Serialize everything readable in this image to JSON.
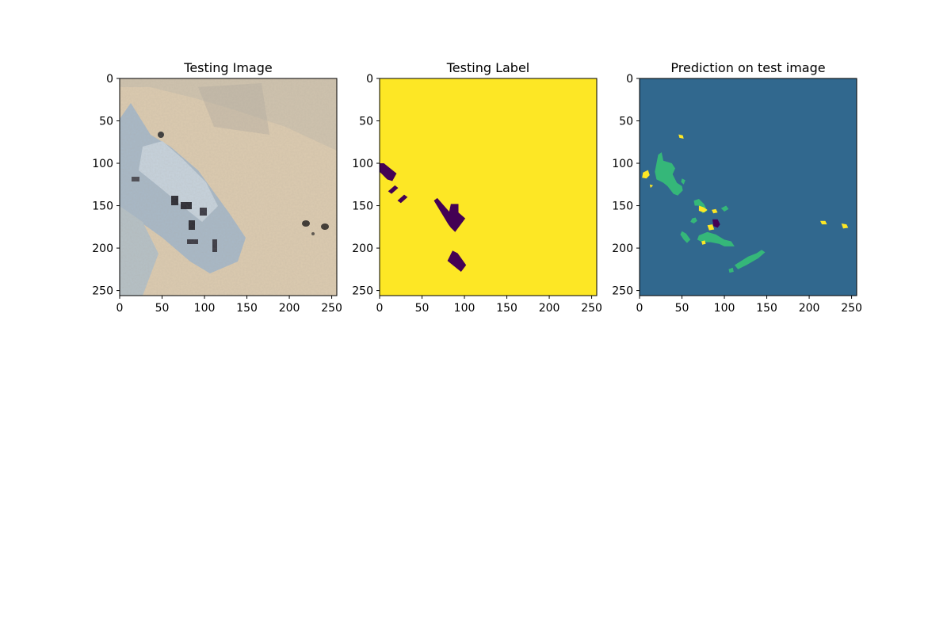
{
  "figure": {
    "panels": [
      {
        "title": "Testing Image",
        "kind": "aerial-photo",
        "xticks": [
          "0",
          "50",
          "100",
          "150",
          "200",
          "250"
        ],
        "yticks": [
          "0",
          "50",
          "100",
          "150",
          "200",
          "250"
        ],
        "colors": {
          "sand": "#dccbb0",
          "rubble": "#a9b9c7",
          "shadow": "#2b2b33"
        }
      },
      {
        "title": "Testing Label",
        "kind": "label-mask",
        "xticks": [
          "0",
          "50",
          "100",
          "150",
          "200",
          "250"
        ],
        "yticks": [
          "0",
          "50",
          "100",
          "150",
          "200",
          "250"
        ],
        "colors": {
          "background": "#fde725",
          "class_0": "#440154"
        }
      },
      {
        "title": "Prediction on test image",
        "kind": "prediction-mask",
        "xticks": [
          "0",
          "50",
          "100",
          "150",
          "200",
          "250"
        ],
        "yticks": [
          "0",
          "50",
          "100",
          "150",
          "200",
          "250"
        ],
        "colors": {
          "background": "#31688e",
          "class_a": "#35b779",
          "class_b": "#fde725",
          "class_c": "#440154"
        }
      }
    ]
  },
  "chart_data": [
    {
      "type": "heatmap",
      "title": "Testing Image",
      "xlabel": "",
      "ylabel": "",
      "xlim": [
        0,
        256
      ],
      "ylim": [
        256,
        0
      ],
      "ticks": [
        0,
        50,
        100,
        150,
        200,
        250
      ],
      "content": "RGB satellite image: sandy terrain with bluish-white building rubble block on the left diagonal"
    },
    {
      "type": "heatmap",
      "title": "Testing Label",
      "xlabel": "",
      "ylabel": "",
      "xlim": [
        0,
        256
      ],
      "ylim": [
        256,
        0
      ],
      "ticks": [
        0,
        50,
        100,
        150,
        200,
        250
      ],
      "classes": [
        {
          "color": "#fde725",
          "role": "background"
        },
        {
          "color": "#440154",
          "role": "labelled regions"
        }
      ],
      "regions": [
        {
          "color": "#440154",
          "points": [
            [
              0,
              100
            ],
            [
              5,
              100
            ],
            [
              20,
              112
            ],
            [
              15,
              121
            ],
            [
              9,
              119
            ],
            [
              0,
              110
            ]
          ]
        },
        {
          "color": "#440154",
          "points": [
            [
              10,
              133
            ],
            [
              18,
              126
            ],
            [
              22,
              129
            ],
            [
              14,
              136
            ]
          ]
        },
        {
          "color": "#440154",
          "points": [
            [
              21,
              144
            ],
            [
              29,
              137
            ],
            [
              33,
              140
            ],
            [
              25,
              147
            ]
          ]
        },
        {
          "color": "#440154",
          "points": [
            [
              64,
              144
            ],
            [
              68,
              141
            ],
            [
              82,
              157
            ],
            [
              84,
              148
            ],
            [
              93,
              148
            ],
            [
              93,
              158
            ],
            [
              101,
              165
            ],
            [
              89,
              181
            ],
            [
              84,
              176
            ],
            [
              81,
              172
            ]
          ]
        },
        {
          "color": "#440154",
          "points": [
            [
              80,
              215
            ],
            [
              86,
              203
            ],
            [
              92,
              206
            ],
            [
              102,
              220
            ],
            [
              96,
              228
            ]
          ]
        }
      ]
    },
    {
      "type": "heatmap",
      "title": "Prediction on test image",
      "xlabel": "",
      "ylabel": "",
      "xlim": [
        0,
        256
      ],
      "ylim": [
        256,
        0
      ],
      "ticks": [
        0,
        50,
        100,
        150,
        200,
        250
      ],
      "classes": [
        {
          "color": "#31688e",
          "role": "background"
        },
        {
          "color": "#35b779",
          "role": "predicted class"
        },
        {
          "color": "#fde725",
          "role": "predicted class"
        },
        {
          "color": "#440154",
          "role": "predicted class"
        }
      ],
      "regions": [
        {
          "color": "#35b779",
          "points": [
            [
              22,
              90
            ],
            [
              26,
              87
            ],
            [
              28,
              97
            ],
            [
              38,
              100
            ],
            [
              42,
              106
            ],
            [
              39,
              113
            ],
            [
              44,
              123
            ],
            [
              50,
              127
            ],
            [
              51,
              132
            ],
            [
              45,
              138
            ],
            [
              40,
              136
            ],
            [
              33,
              127
            ],
            [
              28,
              123
            ],
            [
              20,
              119
            ],
            [
              18,
              110
            ],
            [
              20,
              100
            ]
          ]
        },
        {
          "color": "#35b779",
          "points": [
            [
              50,
              118
            ],
            [
              54,
              120
            ],
            [
              52,
              125
            ],
            [
              49,
              122
            ]
          ]
        },
        {
          "color": "#35b779",
          "points": [
            [
              62,
              165
            ],
            [
              66,
              164
            ],
            [
              68,
              168
            ],
            [
              64,
              171
            ],
            [
              60,
              169
            ]
          ]
        },
        {
          "color": "#35b779",
          "points": [
            [
              64,
              144
            ],
            [
              70,
              142
            ],
            [
              76,
              148
            ],
            [
              80,
              156
            ],
            [
              74,
              159
            ],
            [
              70,
              150
            ],
            [
              65,
              150
            ]
          ]
        },
        {
          "color": "#35b779",
          "points": [
            [
              96,
              153
            ],
            [
              102,
              150
            ],
            [
              105,
              154
            ],
            [
              100,
              157
            ]
          ]
        },
        {
          "color": "#35b779",
          "points": [
            [
              50,
              180
            ],
            [
              55,
              183
            ],
            [
              60,
              190
            ],
            [
              56,
              194
            ],
            [
              52,
              190
            ],
            [
              48,
              184
            ]
          ]
        },
        {
          "color": "#35b779",
          "points": [
            [
              70,
              185
            ],
            [
              80,
              181
            ],
            [
              90,
              184
            ],
            [
              100,
              190
            ],
            [
              108,
              192
            ],
            [
              112,
              198
            ],
            [
              100,
              198
            ],
            [
              94,
              195
            ],
            [
              84,
              193
            ],
            [
              74,
              193
            ],
            [
              68,
              190
            ]
          ]
        },
        {
          "color": "#35b779",
          "points": [
            [
              112,
              220
            ],
            [
              128,
              210
            ],
            [
              138,
              206
            ],
            [
              144,
              202
            ],
            [
              148,
              205
            ],
            [
              140,
              212
            ],
            [
              126,
              220
            ],
            [
              116,
              225
            ]
          ]
        },
        {
          "color": "#35b779",
          "points": [
            [
              105,
              225
            ],
            [
              110,
              223
            ],
            [
              111,
              228
            ],
            [
              106,
              229
            ]
          ]
        },
        {
          "color": "#fde725",
          "points": [
            [
              46,
              66
            ],
            [
              51,
              67
            ],
            [
              52,
              71
            ],
            [
              47,
              70
            ]
          ]
        },
        {
          "color": "#fde725",
          "points": [
            [
              4,
              111
            ],
            [
              10,
              108
            ],
            [
              12,
              114
            ],
            [
              8,
              118
            ],
            [
              3,
              117
            ]
          ]
        },
        {
          "color": "#fde725",
          "points": [
            [
              12,
              125
            ],
            [
              16,
              126
            ],
            [
              13,
              129
            ]
          ]
        },
        {
          "color": "#fde725",
          "points": [
            [
              70,
              150
            ],
            [
              76,
              152
            ],
            [
              80,
              155
            ],
            [
              76,
              158
            ],
            [
              70,
              156
            ]
          ]
        },
        {
          "color": "#fde725",
          "points": [
            [
              85,
              155
            ],
            [
              90,
              154
            ],
            [
              92,
              158
            ],
            [
              87,
              159
            ]
          ]
        },
        {
          "color": "#fde725",
          "points": [
            [
              80,
              173
            ],
            [
              86,
              172
            ],
            [
              88,
              178
            ],
            [
              82,
              179
            ]
          ]
        },
        {
          "color": "#fde725",
          "points": [
            [
              73,
              192
            ],
            [
              77,
              191
            ],
            [
              78,
              195
            ],
            [
              74,
              196
            ]
          ]
        },
        {
          "color": "#fde725",
          "points": [
            [
              213,
              168
            ],
            [
              219,
              168
            ],
            [
              221,
              172
            ],
            [
              215,
              172
            ]
          ]
        },
        {
          "color": "#fde725",
          "points": [
            [
              238,
              171
            ],
            [
              244,
              172
            ],
            [
              246,
              176
            ],
            [
              240,
              177
            ]
          ]
        },
        {
          "color": "#440154",
          "points": [
            [
              86,
              166
            ],
            [
              92,
              166
            ],
            [
              95,
              172
            ],
            [
              92,
              176
            ],
            [
              87,
              174
            ]
          ]
        }
      ]
    }
  ]
}
